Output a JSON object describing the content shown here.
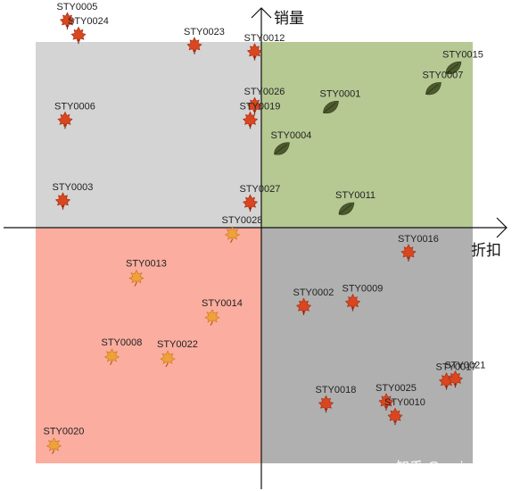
{
  "chart_data": {
    "type": "scatter",
    "xlabel": "折扣",
    "ylabel": "销量",
    "xlim": [
      -100,
      100
    ],
    "ylim": [
      -100,
      100
    ],
    "grid": false,
    "quadrants": [
      {
        "name": "top-left",
        "color": "#d4d4d4"
      },
      {
        "name": "top-right",
        "color": "#b6c993"
      },
      {
        "name": "bottom-left",
        "color": "#fbad9f"
      },
      {
        "name": "bottom-right",
        "color": "#b0b0b0"
      }
    ],
    "marker_icons": {
      "red": "maple-leaf-icon",
      "green": "green-leaf-icon",
      "orange": "autumn-leaf-icon"
    },
    "points": [
      {
        "label": "STY0005",
        "x": -87,
        "y": 100,
        "icon": "red"
      },
      {
        "label": "STY0024",
        "x": -82,
        "y": 93,
        "icon": "red"
      },
      {
        "label": "STY0023",
        "x": -30,
        "y": 88,
        "icon": "red"
      },
      {
        "label": "STY0012",
        "x": -3,
        "y": 85,
        "icon": "red"
      },
      {
        "label": "STY0015",
        "x": 86,
        "y": 77,
        "icon": "green"
      },
      {
        "label": "STY0007",
        "x": 77,
        "y": 67,
        "icon": "green"
      },
      {
        "label": "STY0006",
        "x": -88,
        "y": 52,
        "icon": "red"
      },
      {
        "label": "STY0026",
        "x": -3,
        "y": 59,
        "icon": "red"
      },
      {
        "label": "STY0019",
        "x": -5,
        "y": 52,
        "icon": "red"
      },
      {
        "label": "STY0001",
        "x": 31,
        "y": 58,
        "icon": "green"
      },
      {
        "label": "STY0004",
        "x": 9,
        "y": 38,
        "icon": "green"
      },
      {
        "label": "STY0003",
        "x": -89,
        "y": 13,
        "icon": "red"
      },
      {
        "label": "STY0027",
        "x": -5,
        "y": 12,
        "icon": "red"
      },
      {
        "label": "STY0011",
        "x": 38,
        "y": 9,
        "icon": "green"
      },
      {
        "label": "STY0028",
        "x": -13,
        "y": -3,
        "icon": "orange"
      },
      {
        "label": "STY0016",
        "x": 66,
        "y": -12,
        "icon": "red"
      },
      {
        "label": "STY0013",
        "x": -56,
        "y": -24,
        "icon": "orange"
      },
      {
        "label": "STY0002",
        "x": 19,
        "y": -38,
        "icon": "red"
      },
      {
        "label": "STY0009",
        "x": 41,
        "y": -36,
        "icon": "red"
      },
      {
        "label": "STY0014",
        "x": -22,
        "y": -43,
        "icon": "orange"
      },
      {
        "label": "STY0008",
        "x": -67,
        "y": -62,
        "icon": "orange"
      },
      {
        "label": "STY0022",
        "x": -42,
        "y": -63,
        "icon": "orange"
      },
      {
        "label": "STY0017",
        "x": 83,
        "y": -74,
        "icon": "red"
      },
      {
        "label": "STY0021",
        "x": 87,
        "y": -73,
        "icon": "red"
      },
      {
        "label": "STY0018",
        "x": 29,
        "y": -85,
        "icon": "red"
      },
      {
        "label": "STY0025",
        "x": 56,
        "y": -84,
        "icon": "red"
      },
      {
        "label": "STY0010",
        "x": 60,
        "y": -91,
        "icon": "red"
      },
      {
        "label": "STY0020",
        "x": -93,
        "y": -105,
        "icon": "orange"
      }
    ]
  },
  "watermark": "知乎 @wujunmin"
}
